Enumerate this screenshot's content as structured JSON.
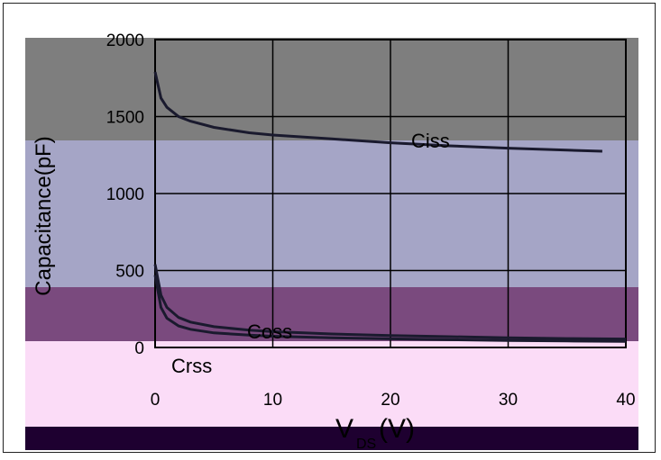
{
  "chart_data": {
    "type": "line",
    "title": "",
    "ylabel": "Capacitance(pF)",
    "xlabel": {
      "main": "V",
      "sub": "DS",
      "unit": "(V)"
    },
    "xlim": [
      0,
      40
    ],
    "ylim": [
      0,
      2000
    ],
    "x_ticks": [
      "0",
      "10",
      "20",
      "30",
      "40"
    ],
    "y_ticks": [
      "0",
      "500",
      "1000",
      "1500",
      "2000"
    ],
    "grid": true,
    "series": [
      {
        "name": "Ciss",
        "x": [
          0,
          0.5,
          1,
          2,
          3,
          5,
          8,
          10,
          15,
          20,
          25,
          30,
          35,
          38
        ],
        "y": [
          1790,
          1620,
          1560,
          1500,
          1470,
          1430,
          1395,
          1380,
          1355,
          1330,
          1310,
          1295,
          1282,
          1275
        ]
      },
      {
        "name": "Coss",
        "x": [
          0,
          0.5,
          1,
          2,
          3,
          5,
          8,
          10,
          15,
          20,
          25,
          30,
          35,
          40
        ],
        "y": [
          540,
          340,
          260,
          195,
          165,
          135,
          112,
          103,
          88,
          78,
          70,
          63,
          58,
          55
        ]
      },
      {
        "name": "Crss",
        "x": [
          0,
          0.5,
          1,
          2,
          3,
          5,
          8,
          10,
          15,
          20,
          25,
          30,
          35,
          40
        ],
        "y": [
          470,
          260,
          190,
          140,
          118,
          95,
          80,
          73,
          63,
          56,
          50,
          45,
          42,
          40
        ]
      }
    ]
  }
}
